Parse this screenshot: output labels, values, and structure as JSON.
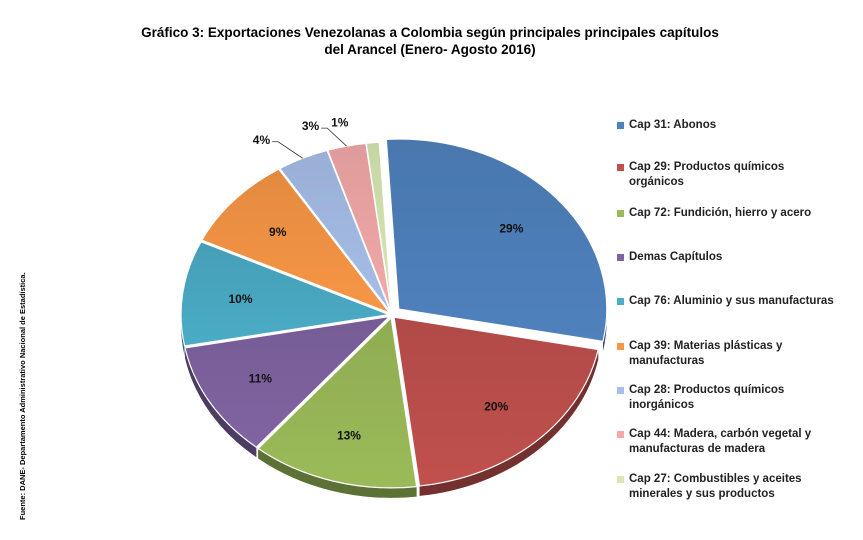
{
  "title_line1": "Gráfico 3: Exportaciones Venezolanas a Colombia según principales principales capítulos",
  "title_line2": "del Arancel (Enero- Agosto 2016)",
  "source": "Fuente: DANE- Departamento Administrativo Nacional de Estadística.",
  "chart_data": {
    "type": "pie",
    "title": "Gráfico 3: Exportaciones Venezolanas a Colombia según principales principales capítulos del Arancel (Enero- Agosto 2016)",
    "legend_position": "right",
    "slices": [
      {
        "label": "Cap 31: Abonos",
        "value": 29,
        "value_label": "29%",
        "color": "#4F81BD"
      },
      {
        "label": "Cap 29: Productos químicos orgánicos",
        "value": 20,
        "value_label": "20%",
        "color": "#C0504D"
      },
      {
        "label": "Cap 72: Fundición, hierro y acero",
        "value": 13,
        "value_label": "13%",
        "color": "#9BBB59"
      },
      {
        "label": "Demas Capítulos",
        "value": 11,
        "value_label": "11%",
        "color": "#8064A2"
      },
      {
        "label": "Cap 76: Aluminio y sus manufacturas",
        "value": 10,
        "value_label": "10%",
        "color": "#4BACC6"
      },
      {
        "label": "Cap 39: Materias plásticas y manufacturas",
        "value": 9,
        "value_label": "9%",
        "color": "#F79646"
      },
      {
        "label": "Cap 28: Productos químicos inorgánicos",
        "value": 4,
        "value_label": "4%",
        "color": "#A6BEE8"
      },
      {
        "label": "Cap 44: Madera, carbón vegetal y manufacturas de madera",
        "value": 3,
        "value_label": "3%",
        "color": "#F2A9A8"
      },
      {
        "label": "Cap 27: Combustibles y aceites minerales y sus productos",
        "value": 1,
        "value_label": "1%",
        "color": "#D7E8B2"
      }
    ]
  },
  "legend_items": [
    {
      "line1": "Cap 31: Abonos",
      "line2": ""
    },
    {
      "line1": "Cap 29: Productos químicos",
      "line2": "orgánicos"
    },
    {
      "line1": "Cap 72: Fundición, hierro y acero",
      "line2": ""
    },
    {
      "line1": "Demas Capítulos",
      "line2": ""
    },
    {
      "line1": "Cap 76: Aluminio y sus manufacturas",
      "line2": ""
    },
    {
      "line1": "Cap 39: Materias plásticas y",
      "line2": "manufacturas"
    },
    {
      "line1": "Cap 28: Productos químicos",
      "line2": "inorgánicos"
    },
    {
      "line1": "Cap 44: Madera, carbón vegetal y",
      "line2": "manufacturas de madera"
    },
    {
      "line1": "Cap 27: Combustibles y aceites",
      "line2": "minerales y sus productos"
    }
  ]
}
